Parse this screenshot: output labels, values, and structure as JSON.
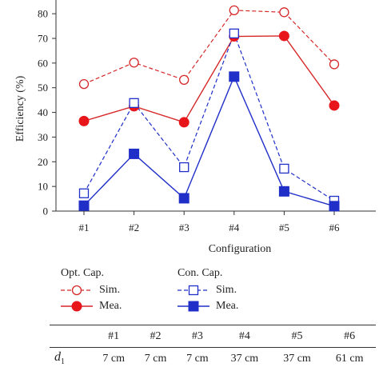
{
  "chart_data": {
    "type": "line",
    "categories": [
      "#1",
      "#2",
      "#3",
      "#4",
      "#5",
      "#6"
    ],
    "xlabel": "Configuration",
    "ylabel": "Efficiency (%)",
    "ylim": [
      0,
      82
    ],
    "yticks": [
      0,
      10,
      20,
      30,
      40,
      50,
      60,
      70,
      80
    ],
    "grid": false,
    "series": [
      {
        "key": "opt_sim",
        "group": "Opt. Cap.",
        "name": "Sim.",
        "color": "#d62728",
        "marker": "circle",
        "filled": false,
        "dashed": true,
        "values": [
          51.5,
          60.2,
          53.2,
          81.4,
          80.6,
          59.5
        ]
      },
      {
        "key": "opt_mea",
        "group": "Opt. Cap.",
        "name": "Mea.",
        "color": "#d62728",
        "marker": "circle",
        "filled": true,
        "dashed": false,
        "values": [
          36.5,
          42.5,
          36.0,
          70.8,
          71.0,
          42.8
        ]
      },
      {
        "key": "con_sim",
        "group": "Con. Cap.",
        "name": "Sim.",
        "color": "#1f2fc8",
        "marker": "square",
        "filled": false,
        "dashed": true,
        "values": [
          7.2,
          43.8,
          17.8,
          72.0,
          17.2,
          4.2
        ]
      },
      {
        "key": "con_mea",
        "group": "Con. Cap.",
        "name": "Mea.",
        "color": "#1f2fc8",
        "marker": "square",
        "filled": true,
        "dashed": false,
        "values": [
          2.2,
          23.2,
          5.2,
          54.5,
          8.0,
          2.0
        ]
      }
    ]
  },
  "legend": {
    "opt_title": "Opt. Cap.",
    "con_title": "Con. Cap.",
    "sim_label": "Sim.",
    "mea_label": "Mea."
  },
  "table": {
    "header": [
      "#1",
      "#2",
      "#3",
      "#4",
      "#5",
      "#6"
    ],
    "d1_label": "d",
    "d1_sub": "1",
    "d1_values": [
      "7 cm",
      "7 cm",
      "7 cm",
      "37 cm",
      "37 cm",
      "61 cm"
    ]
  }
}
